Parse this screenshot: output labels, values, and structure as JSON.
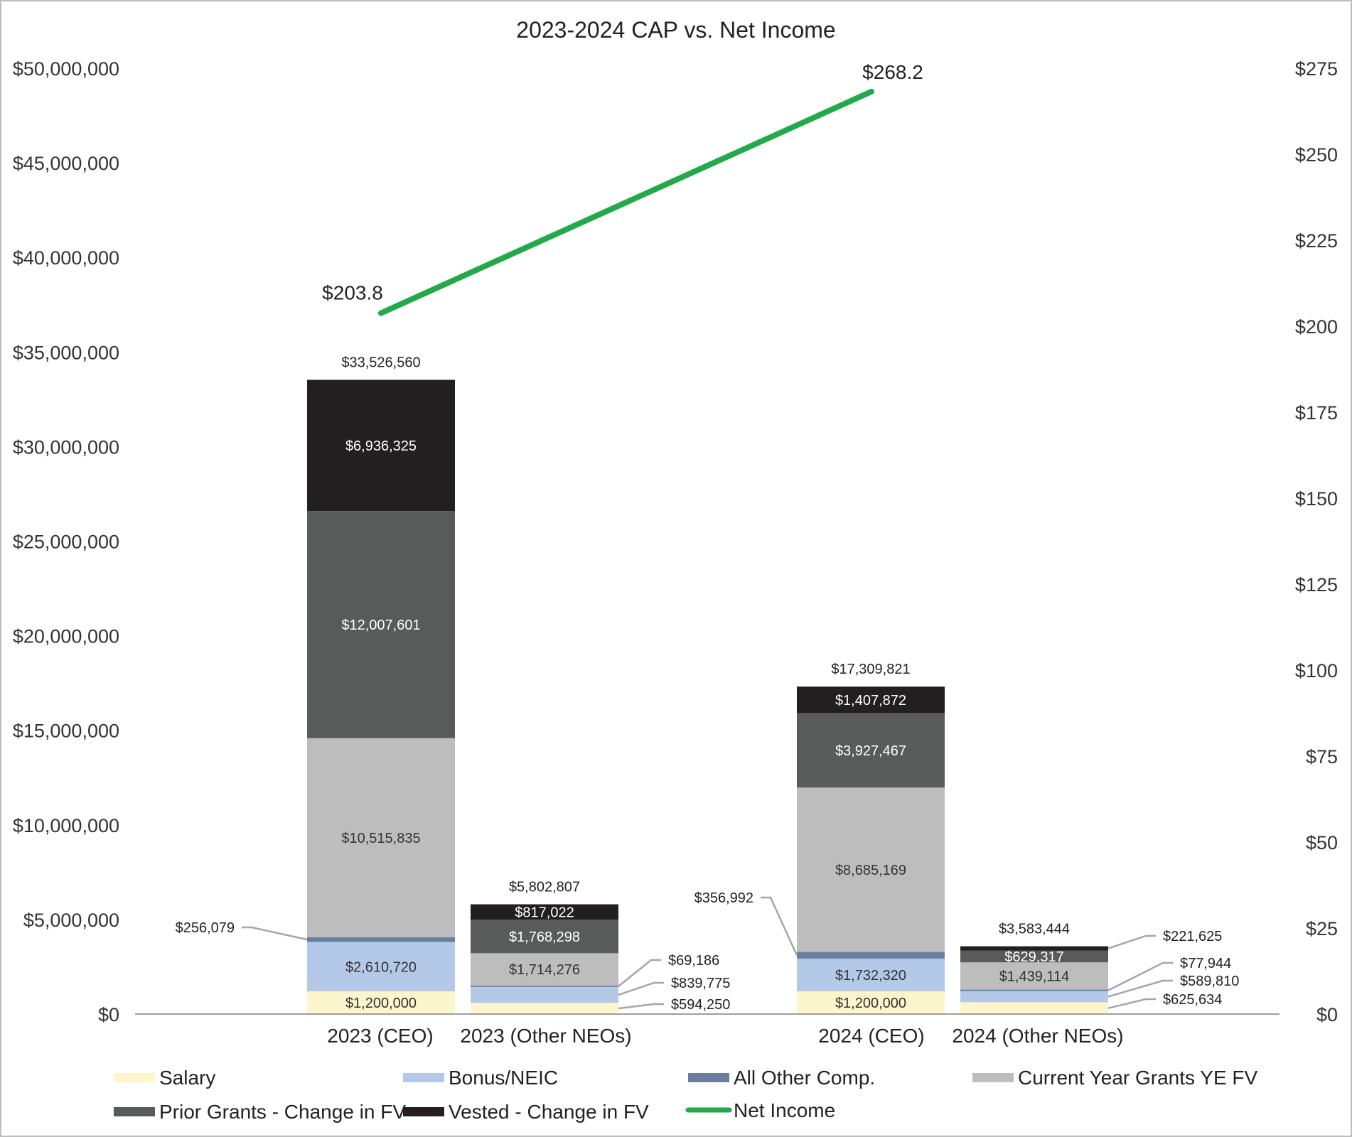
{
  "chart_data": {
    "type": "bar",
    "stacked": true,
    "title": "2023-2024 CAP vs. Net Income",
    "categories": [
      "2023 (CEO)",
      "2023 (Other NEOs)",
      "2024 (CEO)",
      "2024 (Other NEOs)"
    ],
    "series": [
      {
        "name": "Salary",
        "color": "#fdf5cc",
        "values": [
          1200000,
          594250,
          1200000,
          625634
        ],
        "value_labels": [
          "$1,200,000",
          "$594,250",
          "$1,200,000",
          "$625,634"
        ]
      },
      {
        "name": "Bonus/NEIC",
        "color": "#b4c8e8",
        "values": [
          2610720,
          839775,
          1732320,
          589810
        ],
        "value_labels": [
          "$2,610,720",
          "$839,775",
          "$1,732,320",
          "$589,810"
        ]
      },
      {
        "name": "All Other Comp.",
        "color": "#6a7f9f",
        "values": [
          256079,
          69186,
          356992,
          77944
        ],
        "value_labels": [
          "$256,079",
          "$69,186",
          "$356,992",
          "$77,944"
        ]
      },
      {
        "name": "Current Year Grants YE FV",
        "color": "#bdbdbd",
        "values": [
          10515835,
          1714276,
          8685169,
          1439114
        ],
        "value_labels": [
          "$10,515,835",
          "$1,714,276",
          "$8,685,169",
          "$1,439,114"
        ]
      },
      {
        "name": "Prior Grants - Change in FV",
        "color": "#595b5a",
        "values": [
          12007601,
          1768298,
          3927467,
          629317
        ],
        "value_labels": [
          "$12,007,601",
          "$1,768,298",
          "$3,927,467",
          "$629,317"
        ]
      },
      {
        "name": "Vested - Change in FV",
        "color": "#231f20",
        "values": [
          6936325,
          817022,
          1407872,
          221625
        ],
        "value_labels": [
          "$6,936,325",
          "$817,022",
          "$1,407,872",
          "$221,625"
        ]
      }
    ],
    "totals": [
      33526560,
      5802807,
      17309821,
      3583444
    ],
    "total_labels": [
      "$33,526,560",
      "$5,802,807",
      "$17,309,821",
      "$3,583,444"
    ],
    "net_income": {
      "name": "Net Income",
      "color": "#22aa4a",
      "x": [
        "2023",
        "2024"
      ],
      "values": [
        203.8,
        268.2
      ],
      "value_labels": [
        "$203.8",
        "$268.2"
      ]
    },
    "y_left": {
      "min": 0,
      "max": 50000000,
      "ticks": [
        "$0",
        "$5,000,000",
        "$10,000,000",
        "$15,000,000",
        "$20,000,000",
        "$25,000,000",
        "$30,000,000",
        "$35,000,000",
        "$40,000,000",
        "$45,000,000",
        "$50,000,000"
      ]
    },
    "y_right": {
      "min": 0,
      "max": 275,
      "ticks": [
        "$0",
        "$25",
        "$50",
        "$75",
        "$100",
        "$125",
        "$150",
        "$175",
        "$200",
        "$225",
        "$250",
        "$275"
      ]
    },
    "legend_position": "bottom",
    "grid": false
  }
}
